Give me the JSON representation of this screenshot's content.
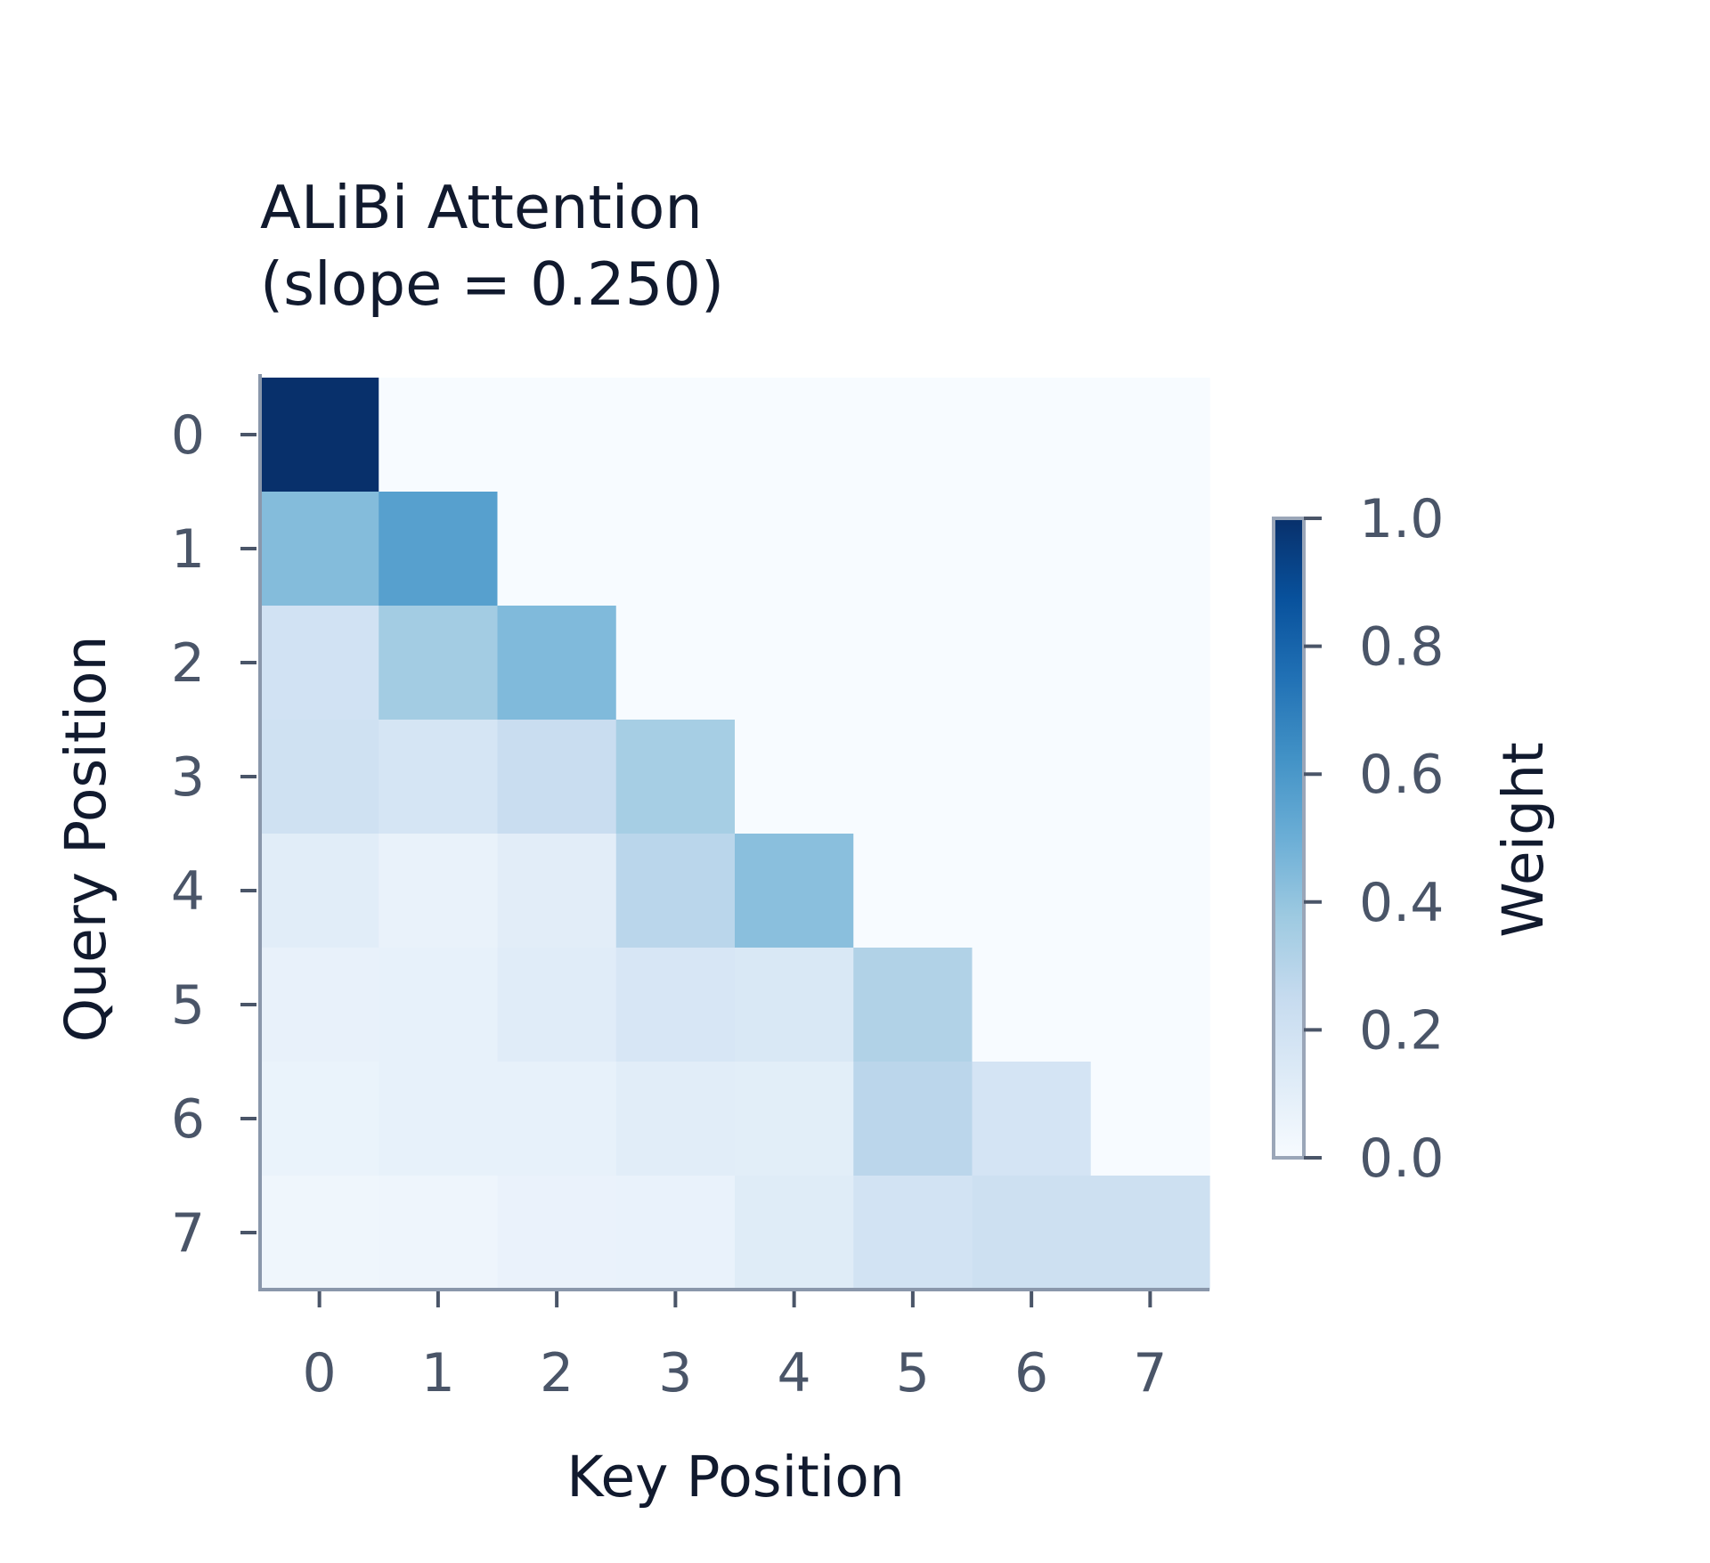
{
  "chart_data": {
    "type": "heatmap",
    "title_lines": [
      "ALiBi Attention",
      "(slope = 0.250)"
    ],
    "xlabel": "Key Position",
    "ylabel": "Query Position",
    "x_categories": [
      "0",
      "1",
      "2",
      "3",
      "4",
      "5",
      "6",
      "7"
    ],
    "y_categories": [
      "0",
      "1",
      "2",
      "3",
      "4",
      "5",
      "6",
      "7"
    ],
    "values": [
      [
        1.0,
        0.0,
        0.0,
        0.0,
        0.0,
        0.0,
        0.0,
        0.0
      ],
      [
        0.438,
        0.562,
        0.0,
        0.0,
        0.0,
        0.0,
        0.0,
        0.0
      ],
      [
        0.193,
        0.359,
        0.448,
        0.0,
        0.0,
        0.0,
        0.0,
        0.0
      ],
      [
        0.202,
        0.173,
        0.236,
        0.349,
        0.0,
        0.0,
        0.0,
        0.0
      ],
      [
        0.109,
        0.072,
        0.107,
        0.289,
        0.423,
        0.0,
        0.0,
        0.0
      ],
      [
        0.076,
        0.078,
        0.114,
        0.164,
        0.151,
        0.317,
        0.0,
        0.0
      ],
      [
        0.065,
        0.078,
        0.08,
        0.11,
        0.105,
        0.285,
        0.177,
        0.0
      ],
      [
        0.04,
        0.044,
        0.067,
        0.07,
        0.121,
        0.186,
        0.211,
        0.211
      ]
    ],
    "colorbar": {
      "label": "Weight",
      "range": [
        0.0,
        1.0
      ],
      "ticks": [
        "0.0",
        "0.2",
        "0.4",
        "0.6",
        "0.8",
        "1.0"
      ]
    },
    "colormap": "Blues",
    "grid": false,
    "legend": "colorbar-right"
  }
}
